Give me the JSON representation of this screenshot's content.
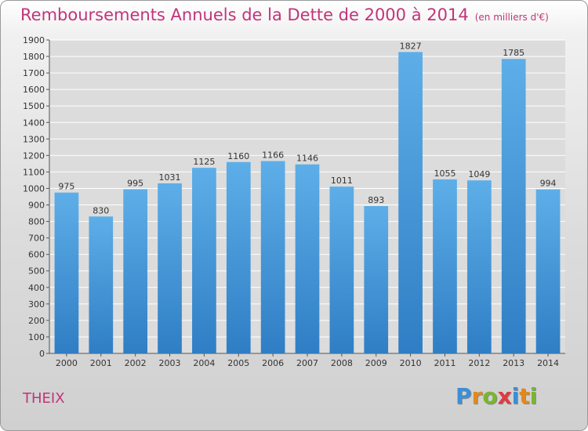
{
  "title": "Remboursements Annuels de la Dette de 2000 à 2014",
  "unit_note": "(en milliers d'€)",
  "commune": "THEIX",
  "logo": {
    "text": "Proxiti",
    "letters": [
      "P",
      "r",
      "o",
      "x",
      "i",
      "t",
      "i"
    ],
    "colors": [
      "#3a8fd8",
      "#e08a1e",
      "#7ab530",
      "#e03b3b",
      "#3a8fd8",
      "#e08a1e",
      "#7ab530"
    ]
  },
  "colors": {
    "bar_top": "#5daee8",
    "bar_bottom": "#2f7ec5",
    "title": "#c2347a"
  },
  "chart_data": {
    "type": "bar",
    "categories": [
      "2000",
      "2001",
      "2002",
      "2003",
      "2004",
      "2005",
      "2006",
      "2007",
      "2008",
      "2009",
      "2010",
      "2011",
      "2012",
      "2013",
      "2014"
    ],
    "values": [
      975,
      830,
      995,
      1031,
      1125,
      1160,
      1166,
      1146,
      1011,
      893,
      1827,
      1055,
      1049,
      1785,
      994
    ],
    "ylim": [
      0,
      1900
    ],
    "ytick_step": 100,
    "grid": true
  }
}
